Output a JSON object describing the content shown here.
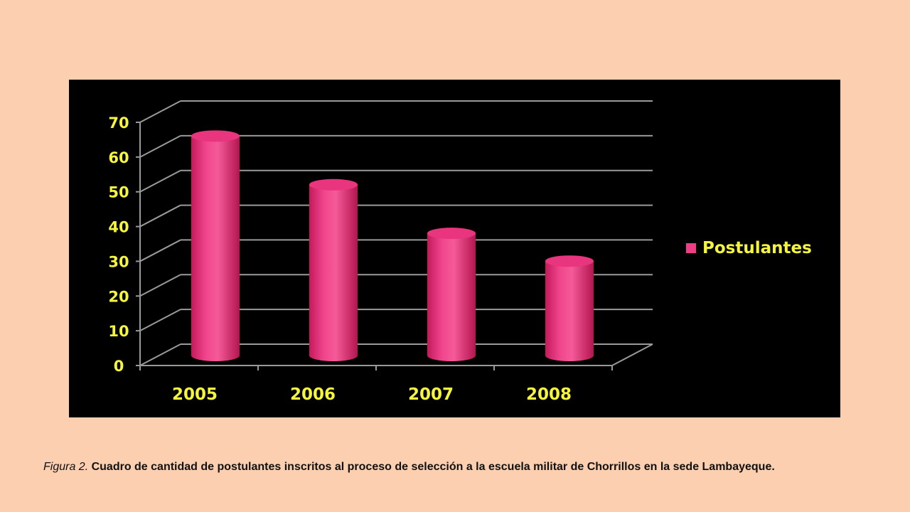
{
  "chart_data": {
    "type": "bar",
    "categories": [
      "2005",
      "2006",
      "2007",
      "2008"
    ],
    "series": [
      {
        "name": "Postulantes",
        "values": [
          64,
          50,
          36,
          28
        ]
      }
    ],
    "ylim": [
      0,
      70
    ],
    "yticks": [
      "0",
      "10",
      "20",
      "30",
      "40",
      "50",
      "60",
      "70"
    ],
    "grid": true,
    "legend": "right",
    "bar_color": "#ef3d86",
    "text_color": "#f5f53c",
    "background": "#000000"
  },
  "caption": {
    "prefix": "Figura 2.",
    "text": " Cuadro de cantidad de postulantes inscritos al proceso de selección a la escuela militar  de Chorrillos en la sede Lambayeque."
  }
}
